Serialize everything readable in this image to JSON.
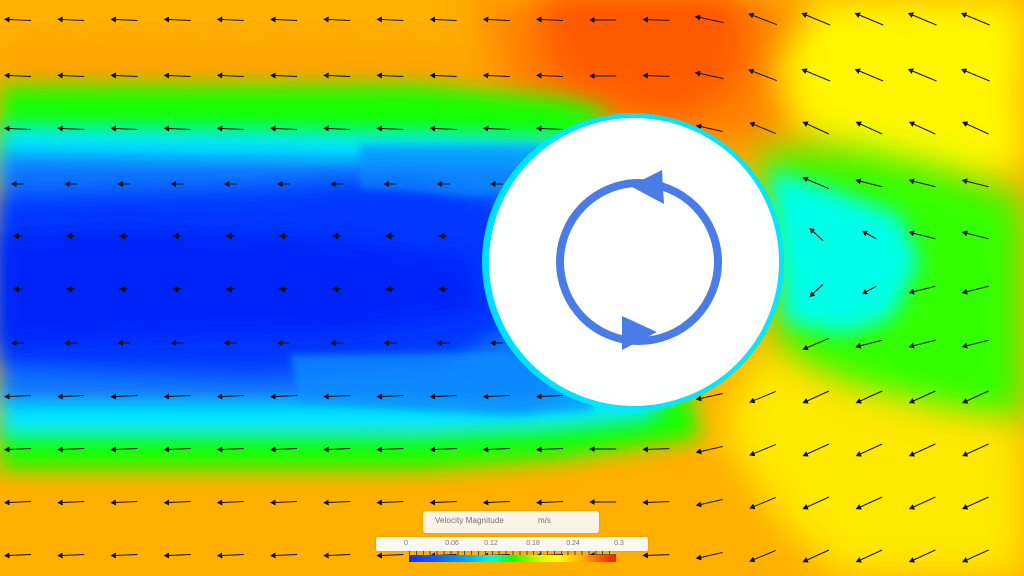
{
  "legend": {
    "title": "Velocity Magnitude",
    "units": "m/s",
    "min": 0,
    "max": 0.3,
    "tick_labels": [
      "0",
      "0.06",
      "0.12",
      "0.18",
      "0.24",
      "0.3"
    ],
    "colormap": [
      "#1d2cff",
      "#0a63ff",
      "#00b7ff",
      "#00ffe1",
      "#13ff00",
      "#c6ff00",
      "#ffff00",
      "#ffaa00",
      "#ff4b00",
      "#ff1600"
    ]
  },
  "scene": {
    "background_color": "#ffb000",
    "cylinder_color": "#ffffff",
    "rotation_arrow_color": "#4a7ce7",
    "vector_color": "#111111",
    "rotation_direction": "counterclockwise"
  }
}
